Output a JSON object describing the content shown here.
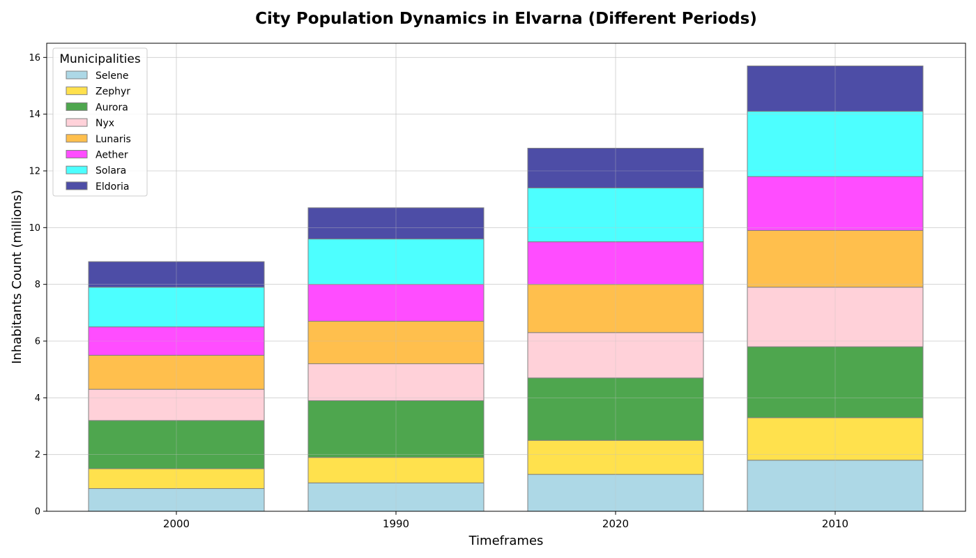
{
  "chart_data": {
    "type": "bar",
    "stacked": true,
    "title": "City Population Dynamics in Elvarna (Different Periods)",
    "xlabel": "Timeframes",
    "ylabel": "Inhabitants Count (millions)",
    "categories": [
      "2000",
      "1990",
      "2020",
      "2010"
    ],
    "ylim": [
      0,
      16.5
    ],
    "yticks": [
      0,
      2,
      4,
      6,
      8,
      10,
      12,
      14,
      16
    ],
    "grid": true,
    "legend": {
      "title": "Municipalities",
      "position": "top-left"
    },
    "series": [
      {
        "name": "Selene",
        "color": "#add8e6",
        "values": [
          0.8,
          1.0,
          1.3,
          1.8
        ]
      },
      {
        "name": "Zephyr",
        "color": "#ffe14d",
        "values": [
          0.7,
          0.9,
          1.2,
          1.5
        ]
      },
      {
        "name": "Aurora",
        "color": "#4ea64e",
        "values": [
          1.7,
          2.0,
          2.2,
          2.5
        ]
      },
      {
        "name": "Nyx",
        "color": "#ffd1d9",
        "values": [
          1.1,
          1.3,
          1.6,
          2.1
        ]
      },
      {
        "name": "Lunaris",
        "color": "#ffbf4d",
        "values": [
          1.2,
          1.5,
          1.7,
          2.0
        ]
      },
      {
        "name": "Aether",
        "color": "#ff4dff",
        "values": [
          1.0,
          1.3,
          1.5,
          1.9
        ]
      },
      {
        "name": "Solara",
        "color": "#4dffff",
        "values": [
          1.4,
          1.6,
          1.9,
          2.3
        ]
      },
      {
        "name": "Eldoria",
        "color": "#4d4da6",
        "values": [
          0.9,
          1.1,
          1.4,
          1.6
        ]
      }
    ]
  }
}
